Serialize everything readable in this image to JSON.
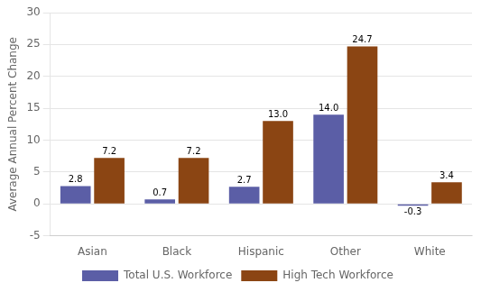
{
  "chart_data": {
    "type": "bar",
    "categories": [
      "Asian",
      "Black",
      "Hispanic",
      "Other",
      "White"
    ],
    "series": [
      {
        "name": "Total U.S. Workforce",
        "color": "#5B5EA6",
        "values": [
          2.8,
          0.7,
          2.7,
          14.0,
          -0.3
        ],
        "value_labels": [
          "2.8",
          "0.7",
          "2.7",
          "14.0",
          "-0.3"
        ]
      },
      {
        "name": "High Tech Workforce",
        "color": "#8B4513",
        "values": [
          7.2,
          7.2,
          13.0,
          24.7,
          3.4
        ],
        "value_labels": [
          "7.2",
          "7.2",
          "13.0",
          "24.7",
          "3.4"
        ]
      }
    ],
    "ylabel": "Average Annual Percent Change",
    "ylim": [
      -5,
      30
    ],
    "yticks": [
      -5,
      0,
      5,
      10,
      15,
      20,
      25,
      30
    ],
    "grid": true,
    "legend": "bottom",
    "data_labels": true
  }
}
